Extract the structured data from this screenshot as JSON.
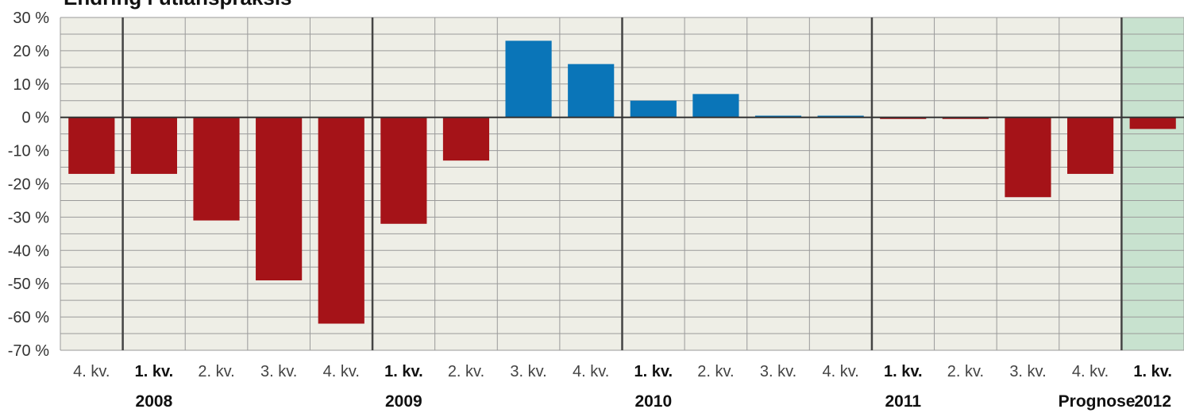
{
  "chart_data": {
    "type": "bar",
    "title": "Endring i utlånspraksis",
    "categories": [
      "4. kv.",
      "1. kv.",
      "2. kv.",
      "3. kv.",
      "4. kv.",
      "1. kv.",
      "2. kv.",
      "3. kv.",
      "4. kv.",
      "1. kv.",
      "2. kv.",
      "3. kv.",
      "4. kv.",
      "1. kv.",
      "2. kv.",
      "3. kv.",
      "4. kv.",
      "1. kv."
    ],
    "category_bold": [
      false,
      true,
      false,
      false,
      false,
      true,
      false,
      false,
      false,
      true,
      false,
      false,
      false,
      true,
      false,
      false,
      false,
      true
    ],
    "values": [
      -17,
      -17,
      -31,
      -49,
      -62,
      -32,
      -13,
      23,
      16,
      5,
      7,
      0.5,
      0.5,
      -0.5,
      -0.5,
      -24,
      -17,
      -3.5
    ],
    "year_labels": [
      {
        "category_index": 1,
        "text": "2008"
      },
      {
        "category_index": 5,
        "text": "2009"
      },
      {
        "category_index": 9,
        "text": "2010"
      },
      {
        "category_index": 13,
        "text": "2011"
      },
      {
        "category_index": 17,
        "text": "2012"
      }
    ],
    "prognose_label": "Prognose",
    "forecast_start_index": 17,
    "year_divider_indices": [
      1,
      5,
      9,
      13,
      17
    ],
    "y_ticks": [
      30,
      20,
      10,
      0,
      -10,
      -20,
      -30,
      -40,
      -50,
      -60,
      -70
    ],
    "y_tick_labels": [
      "30 %",
      "20 %",
      "10 %",
      "0 %",
      "-10 %",
      "-20 %",
      "-30 %",
      "-40 %",
      "-50 %",
      "-60 %",
      "-70 %"
    ],
    "ylim": [
      -70,
      30
    ],
    "grid": true,
    "colors": {
      "positive": "#0a75b8",
      "negative": "#a51318",
      "background": "#eeeee6",
      "forecast_background": "#c8e2cf",
      "grid": "#9a9a9a",
      "divider": "#444444",
      "zero_line": "#333333"
    }
  }
}
